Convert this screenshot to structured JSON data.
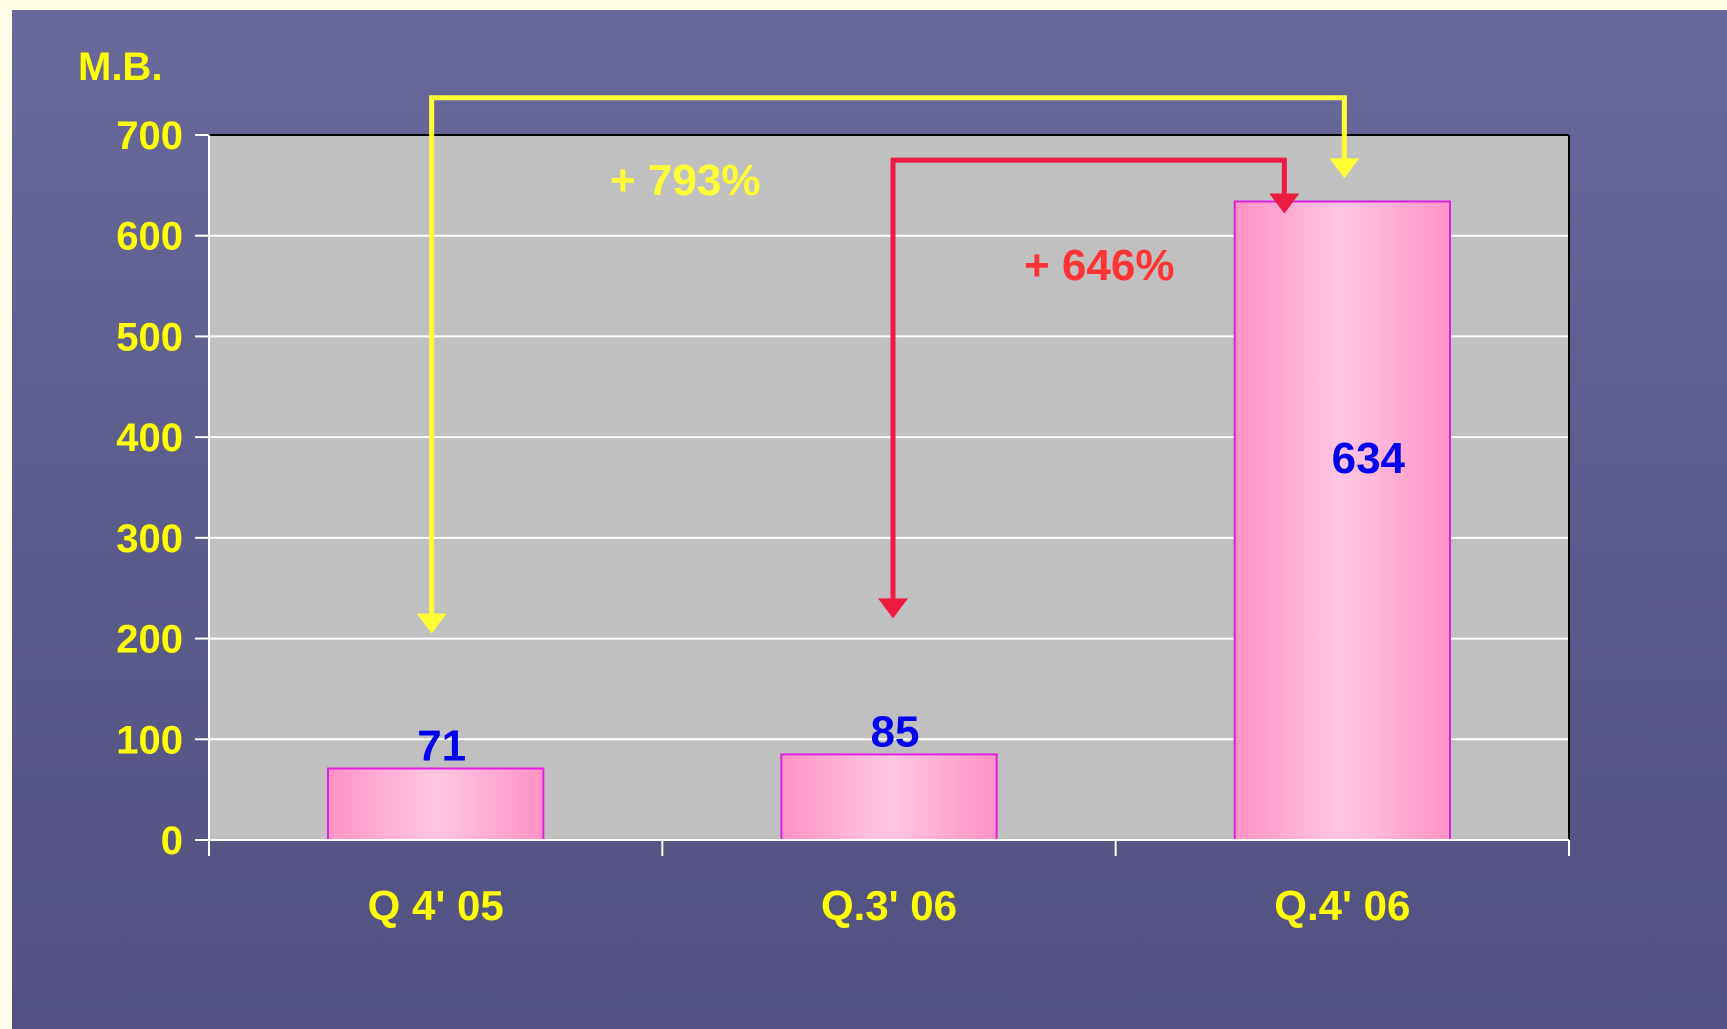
{
  "chart_data": {
    "type": "bar",
    "categories": [
      "Q 4' 05",
      "Q.3' 06",
      "Q.4' 06"
    ],
    "values": [
      71,
      85,
      634
    ],
    "data_labels": [
      "71",
      "85",
      "634"
    ],
    "ylabel": "M.B.",
    "ylim": [
      0,
      700
    ],
    "yticks": [
      0,
      100,
      200,
      300,
      400,
      500,
      600,
      700
    ],
    "grid": true,
    "annotations": [
      {
        "text": "+ 793%",
        "from": "Q 4' 05",
        "to": "Q.4' 06",
        "color": "#FFFF33"
      },
      {
        "text": "+ 646%",
        "from": "Q.3' 06",
        "to": "Q.4' 06",
        "color": "#FF3333"
      }
    ]
  },
  "colors": {
    "plot_background": "#C0C0C0",
    "bar_fill": "#FFB8DA",
    "bar_border": "#E020E0",
    "axis_text": "#FFFF00",
    "data_label": "#0000EE",
    "arrow_793": "#FFFF33",
    "arrow_646": "#EE1A40"
  }
}
